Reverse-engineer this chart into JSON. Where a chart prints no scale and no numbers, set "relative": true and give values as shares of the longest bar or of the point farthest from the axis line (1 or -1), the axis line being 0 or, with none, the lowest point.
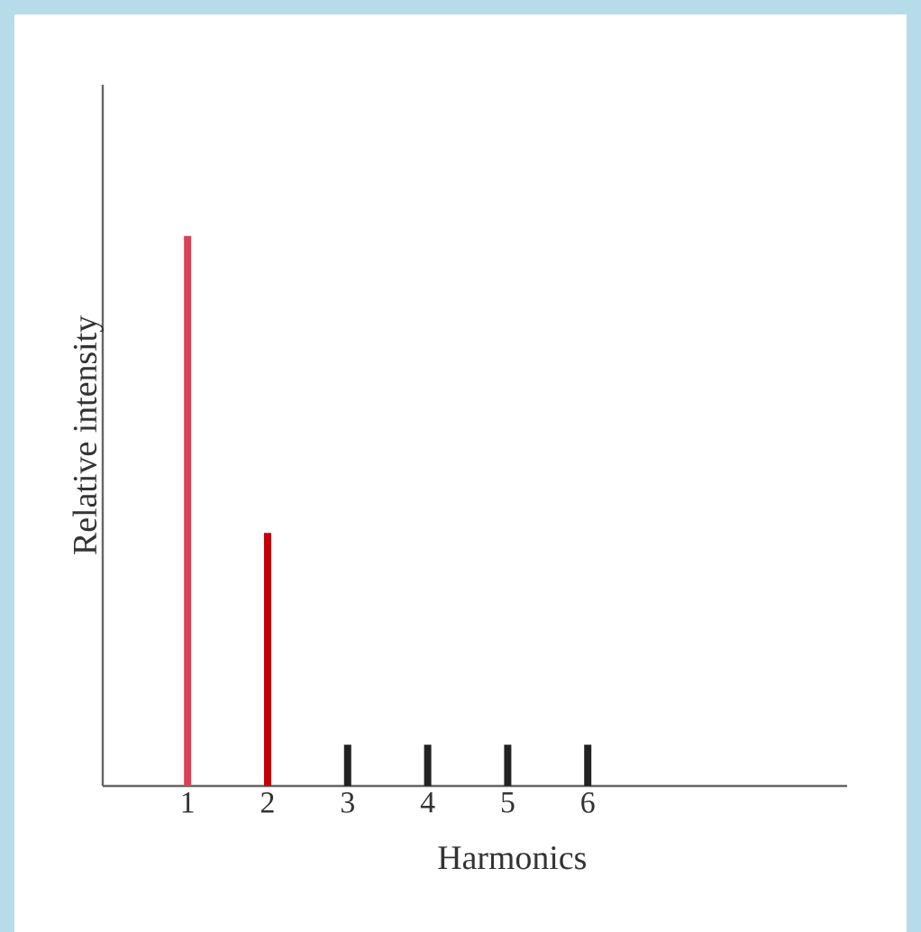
{
  "chart_data": {
    "type": "bar",
    "relative": true,
    "xlabel": "Harmonics",
    "ylabel": "Relative intensity",
    "categories": [
      "1",
      "2",
      "3",
      "4",
      "5",
      "6"
    ],
    "values": [
      1,
      0.46,
      0.075,
      0.075,
      0.075,
      0.075
    ],
    "colors": [
      "#d94255",
      "#c40006",
      "#222222",
      "#222222",
      "#222222",
      "#222222"
    ]
  }
}
